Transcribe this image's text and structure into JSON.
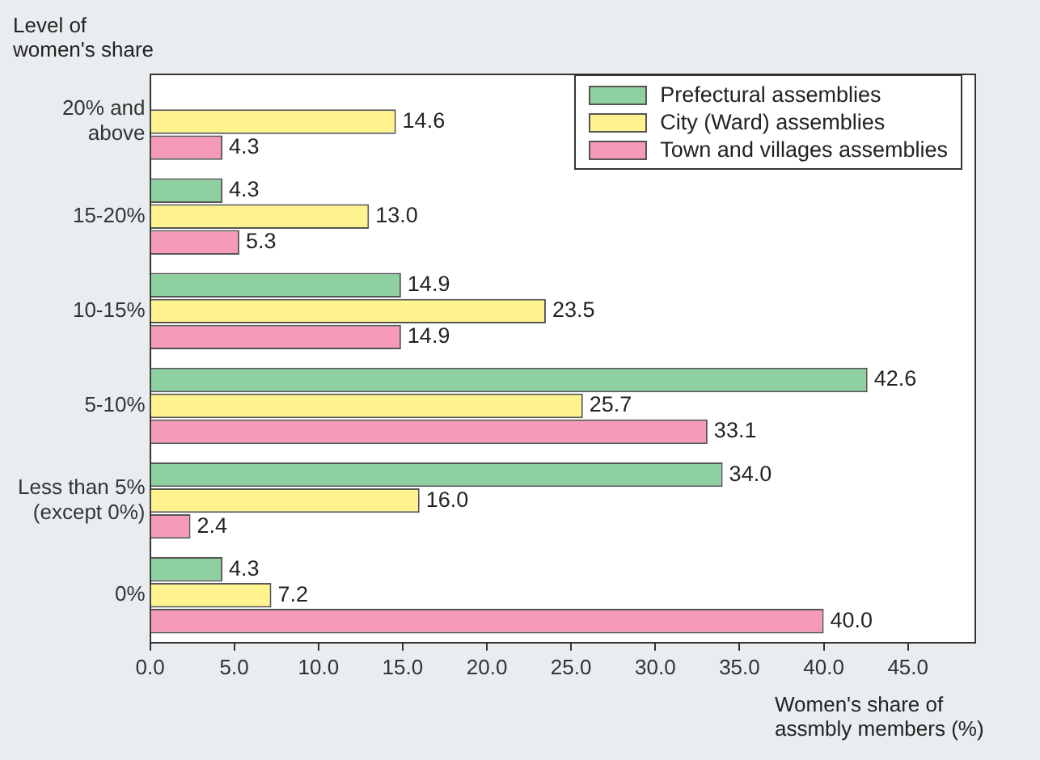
{
  "chart_data": {
    "type": "bar",
    "orientation": "horizontal",
    "ylabel": "Level of women's share",
    "xlabel": "Women's share of assmbly members (%)",
    "categories": [
      "20% and\nabove",
      "15-20%",
      "10-15%",
      "5-10%",
      "Less than 5%\n(except 0%)",
      "0%"
    ],
    "series": [
      {
        "name": "Prefectural assemblies",
        "color": "#8fd0a0",
        "values": [
          null,
          4.3,
          14.9,
          42.6,
          34.0,
          4.3
        ],
        "value_labels": [
          null,
          "4.3",
          "14.9",
          "42.6",
          "34.0",
          "4.3"
        ]
      },
      {
        "name": "City (Ward) assemblies",
        "color": "#fff38f",
        "values": [
          14.6,
          13.0,
          23.5,
          25.7,
          16.0,
          7.2
        ],
        "value_labels": [
          "14.6",
          "13.0",
          "23.5",
          "25.7",
          "16.0",
          "7.2"
        ]
      },
      {
        "name": "Town and villages assemblies",
        "color": "#f59bb8",
        "values": [
          4.3,
          5.3,
          14.9,
          33.1,
          2.4,
          40.0
        ],
        "value_labels": [
          "4.3",
          "5.3",
          "14.9",
          "33.1",
          "2.4",
          "40.0"
        ]
      }
    ],
    "xlim": [
      0,
      49
    ],
    "xticks": [
      {
        "value": 0,
        "label": "0.0"
      },
      {
        "value": 5,
        "label": "5.0"
      },
      {
        "value": 10,
        "label": "10.0"
      },
      {
        "value": 15,
        "label": "15.0"
      },
      {
        "value": 20,
        "label": "20.0"
      },
      {
        "value": 25,
        "label": "25.0"
      },
      {
        "value": 30,
        "label": "30.0"
      },
      {
        "value": 35,
        "label": "35.0"
      },
      {
        "value": 40,
        "label": "40.0"
      },
      {
        "value": 45,
        "label": "45.0"
      }
    ],
    "grid": false,
    "legend": "top right"
  }
}
